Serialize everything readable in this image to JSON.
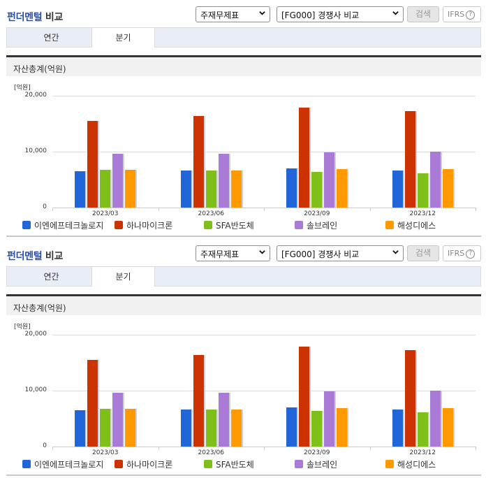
{
  "panels": [
    {
      "title_accent": "펀더멘털",
      "title_rest": " 비교",
      "statement_select": {
        "value": "주재무제표"
      },
      "group_select": {
        "value": "[FG000] 경쟁사 비교"
      },
      "search_button": "검색",
      "ifrs_button": {
        "label": "IFRS",
        "help": "?"
      },
      "tabs": [
        {
          "label": "연간",
          "active": false
        },
        {
          "label": "분기",
          "active": true
        }
      ],
      "section_title": "자산총계(억원)"
    },
    {
      "title_accent": "펀더멘털",
      "title_rest": " 비교",
      "statement_select": {
        "value": "주재무제표"
      },
      "group_select": {
        "value": "[FG000] 경쟁사 비교"
      },
      "search_button": "검색",
      "ifrs_button": {
        "label": "IFRS",
        "help": "?"
      },
      "tabs": [
        {
          "label": "연간",
          "active": false
        },
        {
          "label": "분기",
          "active": true
        }
      ],
      "section_title": "자산총계(억원)"
    }
  ],
  "chart_data": [
    {
      "type": "bar",
      "title": "자산총계(억원)",
      "unit_label": "[억원]",
      "xlabel": "",
      "ylabel": "[억원]",
      "ylim": [
        0,
        20000
      ],
      "yticks": [
        "20,000",
        "10,000",
        "0"
      ],
      "grid": true,
      "legend_position": "bottom",
      "categories": [
        "2023/03",
        "2023/06",
        "2023/09",
        "2023/12"
      ],
      "series": [
        {
          "name": "이엔에프테크놀로지",
          "color": "#2166d9",
          "values": [
            6500,
            6600,
            7000,
            6600
          ]
        },
        {
          "name": "하나마이크론",
          "color": "#cc3300",
          "values": [
            15500,
            16400,
            17900,
            17300
          ]
        },
        {
          "name": "SFA반도체",
          "color": "#7fbf1a",
          "values": [
            6750,
            6600,
            6400,
            6100
          ]
        },
        {
          "name": "솔브레인",
          "color": "#a97ad6",
          "values": [
            9600,
            9600,
            9900,
            10000
          ]
        },
        {
          "name": "해성디에스",
          "color": "#ff9900",
          "values": [
            6750,
            6600,
            6900,
            6900
          ]
        }
      ]
    },
    {
      "type": "bar",
      "title": "자산총계(억원)",
      "unit_label": "[억원]",
      "xlabel": "",
      "ylabel": "[억원]",
      "ylim": [
        0,
        20000
      ],
      "yticks": [
        "20,000",
        "10,000",
        "0"
      ],
      "grid": true,
      "legend_position": "bottom",
      "categories": [
        "2023/03",
        "2023/06",
        "2023/09",
        "2023/12"
      ],
      "series": [
        {
          "name": "이엔에프테크놀로지",
          "color": "#2166d9",
          "values": [
            6500,
            6600,
            7000,
            6600
          ]
        },
        {
          "name": "하나마이크론",
          "color": "#cc3300",
          "values": [
            15500,
            16400,
            17900,
            17300
          ]
        },
        {
          "name": "SFA반도체",
          "color": "#7fbf1a",
          "values": [
            6750,
            6600,
            6400,
            6100
          ]
        },
        {
          "name": "솔브레인",
          "color": "#a97ad6",
          "values": [
            9600,
            9600,
            9900,
            10000
          ]
        },
        {
          "name": "해성디에스",
          "color": "#ff9900",
          "values": [
            6750,
            6600,
            6900,
            6900
          ]
        }
      ]
    }
  ]
}
